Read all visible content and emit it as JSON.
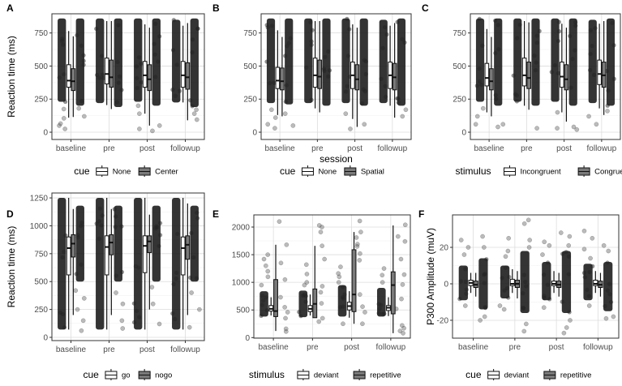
{
  "chart_data": [
    {
      "panel": "A",
      "type": "boxplot",
      "ylabel": "Reaction time (ms)",
      "xlabel": "",
      "categories": [
        "baseline",
        "pre",
        "post",
        "followup"
      ],
      "yticks": [
        0,
        250,
        500,
        750
      ],
      "ylim": [
        -55,
        895
      ],
      "legend": {
        "title": "cue",
        "groups": [
          "None",
          "Center"
        ]
      },
      "boxes": [
        [
          [
            110,
            340,
            390,
            510,
            765
          ],
          [
            115,
            315,
            385,
            480,
            725
          ]
        ],
        [
          [
            205,
            365,
            440,
            560,
            840
          ],
          [
            175,
            340,
            415,
            545,
            840
          ]
        ],
        [
          [
            140,
            340,
            430,
            535,
            815
          ],
          [
            50,
            315,
            400,
            510,
            790
          ]
        ],
        [
          [
            225,
            340,
            430,
            535,
            805
          ],
          [
            90,
            325,
            415,
            525,
            825
          ]
        ]
      ],
      "strips": [
        [
          [
            230,
            860
          ],
          [
            200,
            860
          ]
        ],
        [
          [
            220,
            860
          ],
          [
            190,
            860
          ]
        ],
        [
          [
            230,
            860
          ],
          [
            200,
            860
          ]
        ],
        [
          [
            225,
            850
          ],
          [
            190,
            860
          ]
        ]
      ],
      "outliers": [
        [
          [
            25,
            50,
            65,
            105,
            175
          ],
          [
            120,
            180
          ]
        ],
        [
          [],
          []
        ],
        [
          [
            25,
            140,
            200
          ],
          [
            10,
            50
          ]
        ],
        [
          [],
          [
            95,
            140,
            170
          ]
        ]
      ]
    },
    {
      "panel": "B",
      "type": "boxplot",
      "ylabel": "",
      "xlabel": "session",
      "categories": [
        "baseline",
        "pre",
        "post",
        "followup"
      ],
      "yticks": [
        0,
        250,
        500,
        750
      ],
      "ylim": [
        -55,
        895
      ],
      "legend": {
        "title": "cue",
        "groups": [
          "None",
          "Spatial"
        ]
      },
      "boxes": [
        [
          [
            130,
            330,
            390,
            490,
            770
          ],
          [
            120,
            320,
            385,
            485,
            720
          ]
        ],
        [
          [
            180,
            340,
            430,
            560,
            840
          ],
          [
            150,
            330,
            420,
            545,
            840
          ]
        ],
        [
          [
            100,
            330,
            430,
            530,
            815
          ],
          [
            40,
            320,
            400,
            510,
            790
          ]
        ],
        [
          [
            200,
            330,
            430,
            530,
            805
          ],
          [
            110,
            320,
            415,
            520,
            825
          ]
        ]
      ],
      "strips": [
        [
          [
            220,
            860
          ],
          [
            210,
            860
          ]
        ],
        [
          [
            220,
            860
          ],
          [
            200,
            860
          ]
        ],
        [
          [
            220,
            860
          ],
          [
            200,
            860
          ]
        ],
        [
          [
            220,
            850
          ],
          [
            200,
            860
          ]
        ]
      ],
      "outliers": [
        [
          [
            30,
            60,
            110,
            170
          ],
          [
            50,
            140
          ]
        ],
        [
          [],
          []
        ],
        [
          [
            25,
            140
          ],
          [
            60
          ]
        ],
        [
          [],
          [
            120,
            170
          ]
        ]
      ]
    },
    {
      "panel": "C",
      "type": "boxplot",
      "ylabel": "",
      "xlabel": "",
      "categories": [
        "baseline",
        "pre",
        "post",
        "followup"
      ],
      "yticks": [
        0,
        250,
        500,
        750
      ],
      "ylim": [
        -55,
        895
      ],
      "legend": {
        "title": "stimulus",
        "groups": [
          "Incongruent",
          "Congruent"
        ]
      },
      "boxes": [
        [
          [
            150,
            350,
            410,
            520,
            780
          ],
          [
            120,
            320,
            385,
            480,
            720
          ]
        ],
        [
          [
            200,
            350,
            430,
            560,
            840
          ],
          [
            170,
            330,
            410,
            530,
            830
          ]
        ],
        [
          [
            150,
            340,
            420,
            530,
            820
          ],
          [
            80,
            320,
            400,
            510,
            790
          ]
        ],
        [
          [
            180,
            360,
            440,
            545,
            820
          ],
          [
            130,
            340,
            430,
            530,
            840
          ]
        ]
      ],
      "strips": [
        [
          [
            230,
            860
          ],
          [
            200,
            860
          ]
        ],
        [
          [
            230,
            860
          ],
          [
            200,
            860
          ]
        ],
        [
          [
            230,
            860
          ],
          [
            200,
            860
          ]
        ],
        [
          [
            220,
            850
          ],
          [
            200,
            860
          ]
        ]
      ],
      "outliers": [
        [
          [
            60,
            120,
            180
          ],
          [
            40,
            60
          ]
        ],
        [
          [],
          [
            30
          ]
        ],
        [
          [
            30,
            150
          ],
          [
            20,
            40
          ]
        ],
        [
          [
            60,
            120
          ],
          [
            160
          ]
        ]
      ]
    },
    {
      "panel": "D",
      "type": "boxplot",
      "ylabel": "Reaction time (ms)",
      "xlabel": "",
      "categories": [
        "baseline",
        "pre",
        "post",
        "followup"
      ],
      "yticks": [
        0,
        250,
        500,
        750,
        1000,
        1250
      ],
      "ylim": [
        -29,
        1294
      ],
      "legend": {
        "title": "cue",
        "groups": [
          "go",
          "nogo"
        ]
      },
      "boxes": [
        [
          [
            70,
            560,
            800,
            900,
            1250
          ],
          [
            200,
            720,
            840,
            920,
            1150
          ]
        ],
        [
          [
            70,
            560,
            810,
            910,
            1250
          ],
          [
            200,
            740,
            850,
            920,
            1150
          ]
        ],
        [
          [
            70,
            580,
            820,
            910,
            1250
          ],
          [
            250,
            760,
            860,
            910,
            1100
          ]
        ],
        [
          [
            70,
            560,
            800,
            900,
            1250
          ],
          [
            200,
            700,
            830,
            910,
            1200
          ]
        ]
      ],
      "strips": [
        [
          [
            70,
            1250
          ],
          [
            500,
            1180
          ]
        ],
        [
          [
            70,
            1250
          ],
          [
            500,
            1180
          ]
        ],
        [
          [
            70,
            1250
          ],
          [
            500,
            1180
          ]
        ],
        [
          [
            70,
            1250
          ],
          [
            500,
            1180
          ]
        ]
      ],
      "outliers": [
        [
          [],
          [
            60,
            150,
            250,
            350,
            420
          ]
        ],
        [
          [],
          [
            80,
            150,
            300,
            400
          ]
        ],
        [
          [],
          [
            120,
            300,
            450
          ]
        ],
        [
          [],
          [
            90,
            250,
            400
          ]
        ]
      ]
    },
    {
      "panel": "E",
      "type": "boxplot",
      "ylabel": "",
      "xlabel": "",
      "categories": [
        "baseline",
        "pre",
        "post",
        "followup"
      ],
      "yticks": [
        0,
        500,
        1000,
        1500,
        2000
      ],
      "ylim": [
        -10,
        2220
      ],
      "legend": {
        "title": "stimulus",
        "groups": [
          "deviant",
          "repetitive"
        ]
      },
      "boxes": [
        [
          [
            400,
            480,
            520,
            580,
            730
          ],
          [
            120,
            380,
            480,
            1050,
            1680
          ]
        ],
        [
          [
            400,
            470,
            520,
            580,
            780
          ],
          [
            360,
            360,
            610,
            880,
            1660
          ]
        ],
        [
          [
            360,
            500,
            570,
            640,
            840
          ],
          [
            250,
            470,
            780,
            1590,
            1910
          ]
        ],
        [
          [
            390,
            490,
            540,
            580,
            730
          ],
          [
            80,
            430,
            950,
            1190,
            2030
          ]
        ]
      ],
      "strips": [
        [
          [
            380,
            840
          ],
          null
        ],
        [
          [
            370,
            850
          ],
          null
        ],
        [
          [
            380,
            950
          ],
          null
        ],
        [
          [
            380,
            900
          ],
          null
        ]
      ],
      "outliers": [
        [
          [
            950,
            1100,
            1200,
            1300,
            1420,
            1500
          ],
          [
            110,
            160,
            350,
            460,
            550,
            730,
            1050,
            1350,
            1680,
            2100
          ]
        ],
        [
          [
            950,
            1000,
            1150,
            1320
          ],
          [
            290,
            350,
            620,
            820,
            930,
            1420,
            1660,
            1910,
            2000,
            2030
          ]
        ],
        [
          [
            250,
            1000,
            1100,
            1160,
            1280
          ],
          [
            250,
            460,
            560,
            780,
            1400,
            1520,
            1650,
            1690,
            1810,
            1910,
            2110
          ]
        ],
        [
          [
            1000,
            1130,
            1250
          ],
          [
            80,
            120,
            170,
            220,
            520,
            700,
            960,
            1140,
            1420,
            1740,
            1830,
            2040
          ]
        ]
      ]
    },
    {
      "panel": "F",
      "type": "boxplot",
      "ylabel": "P300 Amplitude (muV)",
      "xlabel": "",
      "categories": [
        "baseline",
        "pre",
        "post",
        "followup"
      ],
      "yticks": [
        -20,
        0,
        20
      ],
      "ylim": [
        -29.8,
        37.8
      ],
      "legend": {
        "title": "cue",
        "groups": [
          "deviant",
          "repetitive"
        ]
      },
      "boxes": [
        [
          [
            -5,
            -1,
            0.5,
            2,
            6
          ],
          [
            -7,
            -2,
            -0.5,
            1.5,
            6
          ]
        ],
        [
          [
            -5,
            -1,
            0,
            2.5,
            8
          ],
          [
            -8,
            -2,
            0,
            2,
            7
          ]
        ],
        [
          [
            -5,
            -1,
            0,
            1.5,
            7
          ],
          [
            -7,
            -2,
            -0.5,
            1.5,
            6
          ]
        ],
        [
          [
            -5,
            -1,
            0,
            2,
            7
          ],
          [
            -7,
            -2,
            -0.5,
            1.5,
            6
          ]
        ]
      ],
      "strips": [
        [
          [
            -9,
            10
          ],
          [
            -14,
            14
          ]
        ],
        [
          [
            -8,
            10
          ],
          [
            -16,
            18
          ]
        ],
        [
          [
            -9,
            12
          ],
          [
            -16,
            18
          ]
        ],
        [
          [
            -9,
            11
          ],
          [
            -15,
            12
          ]
        ]
      ],
      "outliers": [
        [
          [
            -12,
            16,
            20,
            24
          ],
          [
            -20,
            -18,
            20,
            26
          ]
        ],
        [
          [
            -14,
            -12,
            15,
            18,
            25
          ],
          [
            -26,
            -22,
            20,
            24,
            33,
            35
          ]
        ],
        [
          [
            -13,
            16,
            21,
            23
          ],
          [
            -27,
            -24,
            -20,
            21,
            26,
            28
          ]
        ],
        [
          [
            -12,
            14,
            19,
            25,
            29
          ],
          [
            -19,
            -18,
            18,
            21
          ]
        ]
      ]
    }
  ]
}
